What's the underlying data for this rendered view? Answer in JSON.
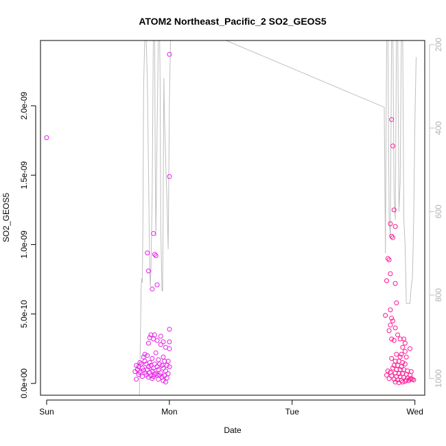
{
  "chart_data": {
    "type": "scatter",
    "title": "ATOM2 Northeast_Pacific_2 SO2_GEOS5",
    "xlabel": "Date",
    "ylabel": "SO2_GEOS5",
    "x_ticks": [
      "Sun",
      "Mon",
      "Tue",
      "Wed"
    ],
    "x_range_days": [
      -0.05,
      3.08
    ],
    "ylim": [
      -8.5e-11,
      2.47e-09
    ],
    "y_ticks": [
      {
        "value": 0,
        "label": "0.0e+00"
      },
      {
        "value": 5e-10,
        "label": "5.0e-10"
      },
      {
        "value": 1e-09,
        "label": "1.0e-09"
      },
      {
        "value": 1.5e-09,
        "label": "1.5e-09"
      },
      {
        "value": 2e-09,
        "label": "2.0e-09"
      }
    ],
    "right_axis": {
      "label": "",
      "range": [
        1040,
        190
      ],
      "ticks": [
        200,
        400,
        600,
        800,
        1000
      ],
      "color": "#bebebe"
    },
    "colors": {
      "point_a": "#e61ee6",
      "point_b": "#ff1493",
      "line": "#bebebe"
    },
    "pressure_profile": [
      [
        0.75,
        1100
      ],
      [
        0.76,
        990
      ],
      [
        0.77,
        780
      ],
      [
        0.775,
        760
      ],
      [
        0.78,
        770
      ],
      [
        0.785,
        600
      ],
      [
        0.79,
        300
      ],
      [
        0.8,
        180
      ],
      [
        0.81,
        180
      ],
      [
        0.82,
        280
      ],
      [
        0.83,
        500
      ],
      [
        0.84,
        740
      ],
      [
        0.845,
        780
      ],
      [
        0.85,
        740
      ],
      [
        0.86,
        560
      ],
      [
        0.87,
        160
      ],
      [
        0.88,
        180
      ],
      [
        0.885,
        500
      ],
      [
        0.89,
        660
      ],
      [
        0.9,
        400
      ],
      [
        0.91,
        180
      ],
      [
        0.92,
        150
      ],
      [
        0.925,
        300
      ],
      [
        0.93,
        640
      ],
      [
        0.94,
        790
      ],
      [
        0.945,
        790
      ],
      [
        0.95,
        560
      ],
      [
        0.955,
        280
      ],
      [
        0.96,
        370
      ],
      [
        0.97,
        480
      ],
      [
        0.98,
        570
      ],
      [
        0.99,
        690
      ],
      [
        1.0,
        340
      ],
      [
        1.01,
        180
      ],
      [
        1.02,
        170
      ],
      [
        1.3,
        170
      ],
      [
        2.75,
        350
      ],
      [
        2.76,
        700
      ],
      [
        2.77,
        180
      ],
      [
        2.78,
        160
      ],
      [
        2.79,
        620
      ],
      [
        2.8,
        660
      ],
      [
        2.81,
        180
      ],
      [
        2.82,
        160
      ],
      [
        2.83,
        560
      ],
      [
        2.84,
        620
      ],
      [
        2.85,
        180
      ],
      [
        2.86,
        160
      ],
      [
        2.87,
        600
      ],
      [
        2.88,
        530
      ],
      [
        2.89,
        180
      ],
      [
        2.9,
        160
      ],
      [
        2.91,
        620
      ],
      [
        2.92,
        680
      ],
      [
        2.93,
        820
      ],
      [
        2.94,
        820
      ],
      [
        2.96,
        820
      ],
      [
        2.97,
        780
      ],
      [
        2.98,
        760
      ],
      [
        2.99,
        620
      ],
      [
        3.0,
        380
      ],
      [
        3.01,
        230
      ]
    ],
    "series": [
      {
        "name": "",
        "color": "#e61ee6",
        "points": [
          [
            0.0,
            1.77e-09
          ],
          [
            1.0,
            2.37e-09
          ],
          [
            1.0,
            1.49e-09
          ],
          [
            0.87,
            1.08e-09
          ],
          [
            0.82,
            9.4e-10
          ],
          [
            0.88,
            9.3e-10
          ],
          [
            0.89,
            9.2e-10
          ],
          [
            0.83,
            8.1e-10
          ],
          [
            0.9,
            7.1e-10
          ],
          [
            0.86,
            6.8e-10
          ],
          [
            1.0,
            3.9e-10
          ],
          [
            0.85,
            3.5e-10
          ],
          [
            0.88,
            3.5e-10
          ],
          [
            0.84,
            3.3e-10
          ],
          [
            0.87,
            3.2e-10
          ],
          [
            0.9,
            3.1e-10
          ],
          [
            0.95,
            3e-10
          ],
          [
            1.0,
            3e-10
          ],
          [
            0.93,
            2.8e-10
          ],
          [
            0.97,
            2.6e-10
          ],
          [
            1.0,
            2.5e-10
          ],
          [
            0.8,
            2.1e-10
          ],
          [
            0.82,
            2e-10
          ],
          [
            0.79,
            1.9e-10
          ],
          [
            0.86,
            1.8e-10
          ],
          [
            0.91,
            1.7e-10
          ],
          [
            0.96,
            1.6e-10
          ],
          [
            0.99,
            1.6e-10
          ],
          [
            0.76,
            1.5e-10
          ],
          [
            0.77,
            1.4e-10
          ],
          [
            0.81,
            1.4e-10
          ],
          [
            0.84,
            1.5e-10
          ],
          [
            0.88,
            1.4e-10
          ],
          [
            0.92,
            1.4e-10
          ],
          [
            0.94,
            1.3e-10
          ],
          [
            0.98,
            1.3e-10
          ],
          [
            0.73,
            1.3e-10
          ],
          [
            0.75,
            1.2e-10
          ],
          [
            0.78,
            1.1e-10
          ],
          [
            0.83,
            1.2e-10
          ],
          [
            0.87,
            1.1e-10
          ],
          [
            0.9,
            1.2e-10
          ],
          [
            0.95,
            1.1e-10
          ],
          [
            1.0,
            1.2e-10
          ],
          [
            0.74,
            1e-10
          ],
          [
            0.79,
            9.5e-11
          ],
          [
            0.82,
            1e-10
          ],
          [
            0.86,
            9e-11
          ],
          [
            0.91,
            1e-10
          ],
          [
            0.97,
            9e-11
          ],
          [
            0.72,
            8.5e-11
          ],
          [
            0.76,
            8e-11
          ],
          [
            0.8,
            7.5e-11
          ],
          [
            0.84,
            8e-11
          ],
          [
            0.89,
            7e-11
          ],
          [
            0.93,
            7.5e-11
          ],
          [
            0.99,
            7e-11
          ],
          [
            0.75,
            6.5e-11
          ],
          [
            0.81,
            6e-11
          ],
          [
            0.85,
            5.5e-11
          ],
          [
            0.88,
            6.5e-11
          ],
          [
            0.92,
            6e-11
          ],
          [
            0.96,
            5.5e-11
          ],
          [
            0.78,
            5e-11
          ],
          [
            0.83,
            4.5e-11
          ],
          [
            0.87,
            5e-11
          ],
          [
            0.94,
            4.5e-11
          ],
          [
            0.98,
            4e-11
          ],
          [
            0.73,
            3e-11
          ],
          [
            0.86,
            3.5e-11
          ],
          [
            0.91,
            3e-11
          ],
          [
            0.95,
            2e-11
          ],
          [
            0.97,
            1e-11
          ],
          [
            0.9,
            6e-11
          ],
          [
            0.85,
            1.3e-10
          ],
          [
            0.8,
            1.6e-10
          ],
          [
            0.95,
            1.9e-10
          ],
          [
            0.89,
            2.2e-10
          ],
          [
            0.83,
            2.9e-10
          ],
          [
            0.93,
            3.4e-10
          ]
        ]
      },
      {
        "name": "",
        "color": "#ff1493",
        "points": [
          [
            2.81,
            1.9e-09
          ],
          [
            2.82,
            1.71e-09
          ],
          [
            2.83,
            1.25e-09
          ],
          [
            2.8,
            1.15e-09
          ],
          [
            2.84,
            1.13e-09
          ],
          [
            2.81,
            1.06e-09
          ],
          [
            2.82,
            1.05e-09
          ],
          [
            2.78,
            9e-10
          ],
          [
            2.79,
            8.9e-10
          ],
          [
            2.8,
            7.9e-10
          ],
          [
            2.77,
            7.4e-10
          ],
          [
            2.84,
            7.2e-10
          ],
          [
            2.85,
            5.8e-10
          ],
          [
            2.8,
            5.3e-10
          ],
          [
            2.76,
            4.9e-10
          ],
          [
            2.81,
            4.7e-10
          ],
          [
            2.82,
            4.5e-10
          ],
          [
            2.8,
            4.2e-10
          ],
          [
            2.84,
            4e-10
          ],
          [
            2.79,
            3.8e-10
          ],
          [
            2.86,
            3.5e-10
          ],
          [
            2.81,
            3.2e-10
          ],
          [
            2.83,
            3.1e-10
          ],
          [
            2.88,
            3.2e-10
          ],
          [
            2.91,
            3.2e-10
          ],
          [
            2.92,
            2.9e-10
          ],
          [
            2.9,
            2.6e-10
          ],
          [
            2.96,
            2.5e-10
          ],
          [
            2.92,
            2.3e-10
          ],
          [
            2.89,
            2.1e-10
          ],
          [
            2.85,
            2.1e-10
          ],
          [
            2.88,
            1.9e-10
          ],
          [
            2.93,
            1.9e-10
          ],
          [
            2.81,
            1.8e-10
          ],
          [
            2.84,
            1.6e-10
          ],
          [
            2.87,
            1.6e-10
          ],
          [
            2.9,
            1.5e-10
          ],
          [
            2.92,
            1.4e-10
          ],
          [
            2.83,
            1.3e-10
          ],
          [
            2.86,
            1.3e-10
          ],
          [
            2.89,
            1.2e-10
          ],
          [
            2.82,
            1.1e-10
          ],
          [
            2.85,
            1e-10
          ],
          [
            2.88,
            1e-10
          ],
          [
            2.91,
            1e-10
          ],
          [
            2.94,
            9e-11
          ],
          [
            2.97,
            8.5e-11
          ],
          [
            2.78,
            9e-11
          ],
          [
            2.8,
            8e-11
          ],
          [
            2.84,
            7.5e-11
          ],
          [
            2.87,
            7e-11
          ],
          [
            2.9,
            7e-11
          ],
          [
            2.93,
            6.5e-11
          ],
          [
            2.96,
            6e-11
          ],
          [
            2.77,
            6e-11
          ],
          [
            2.81,
            5.5e-11
          ],
          [
            2.85,
            5e-11
          ],
          [
            2.88,
            5e-11
          ],
          [
            2.91,
            4.5e-11
          ],
          [
            2.94,
            4e-11
          ],
          [
            2.97,
            3.5e-11
          ],
          [
            2.79,
            3.5e-11
          ],
          [
            2.83,
            3e-11
          ],
          [
            2.86,
            2.5e-11
          ],
          [
            2.89,
            2e-11
          ],
          [
            2.92,
            1.5e-11
          ],
          [
            2.95,
            2e-11
          ],
          [
            2.84,
            1e-11
          ],
          [
            2.87,
            5e-12
          ],
          [
            2.9,
            1e-11
          ],
          [
            2.96,
            3e-11
          ],
          [
            2.98,
            3e-11
          ],
          [
            2.99,
            2.5e-11
          ],
          [
            2.93,
            2.5e-11
          ]
        ]
      }
    ]
  }
}
